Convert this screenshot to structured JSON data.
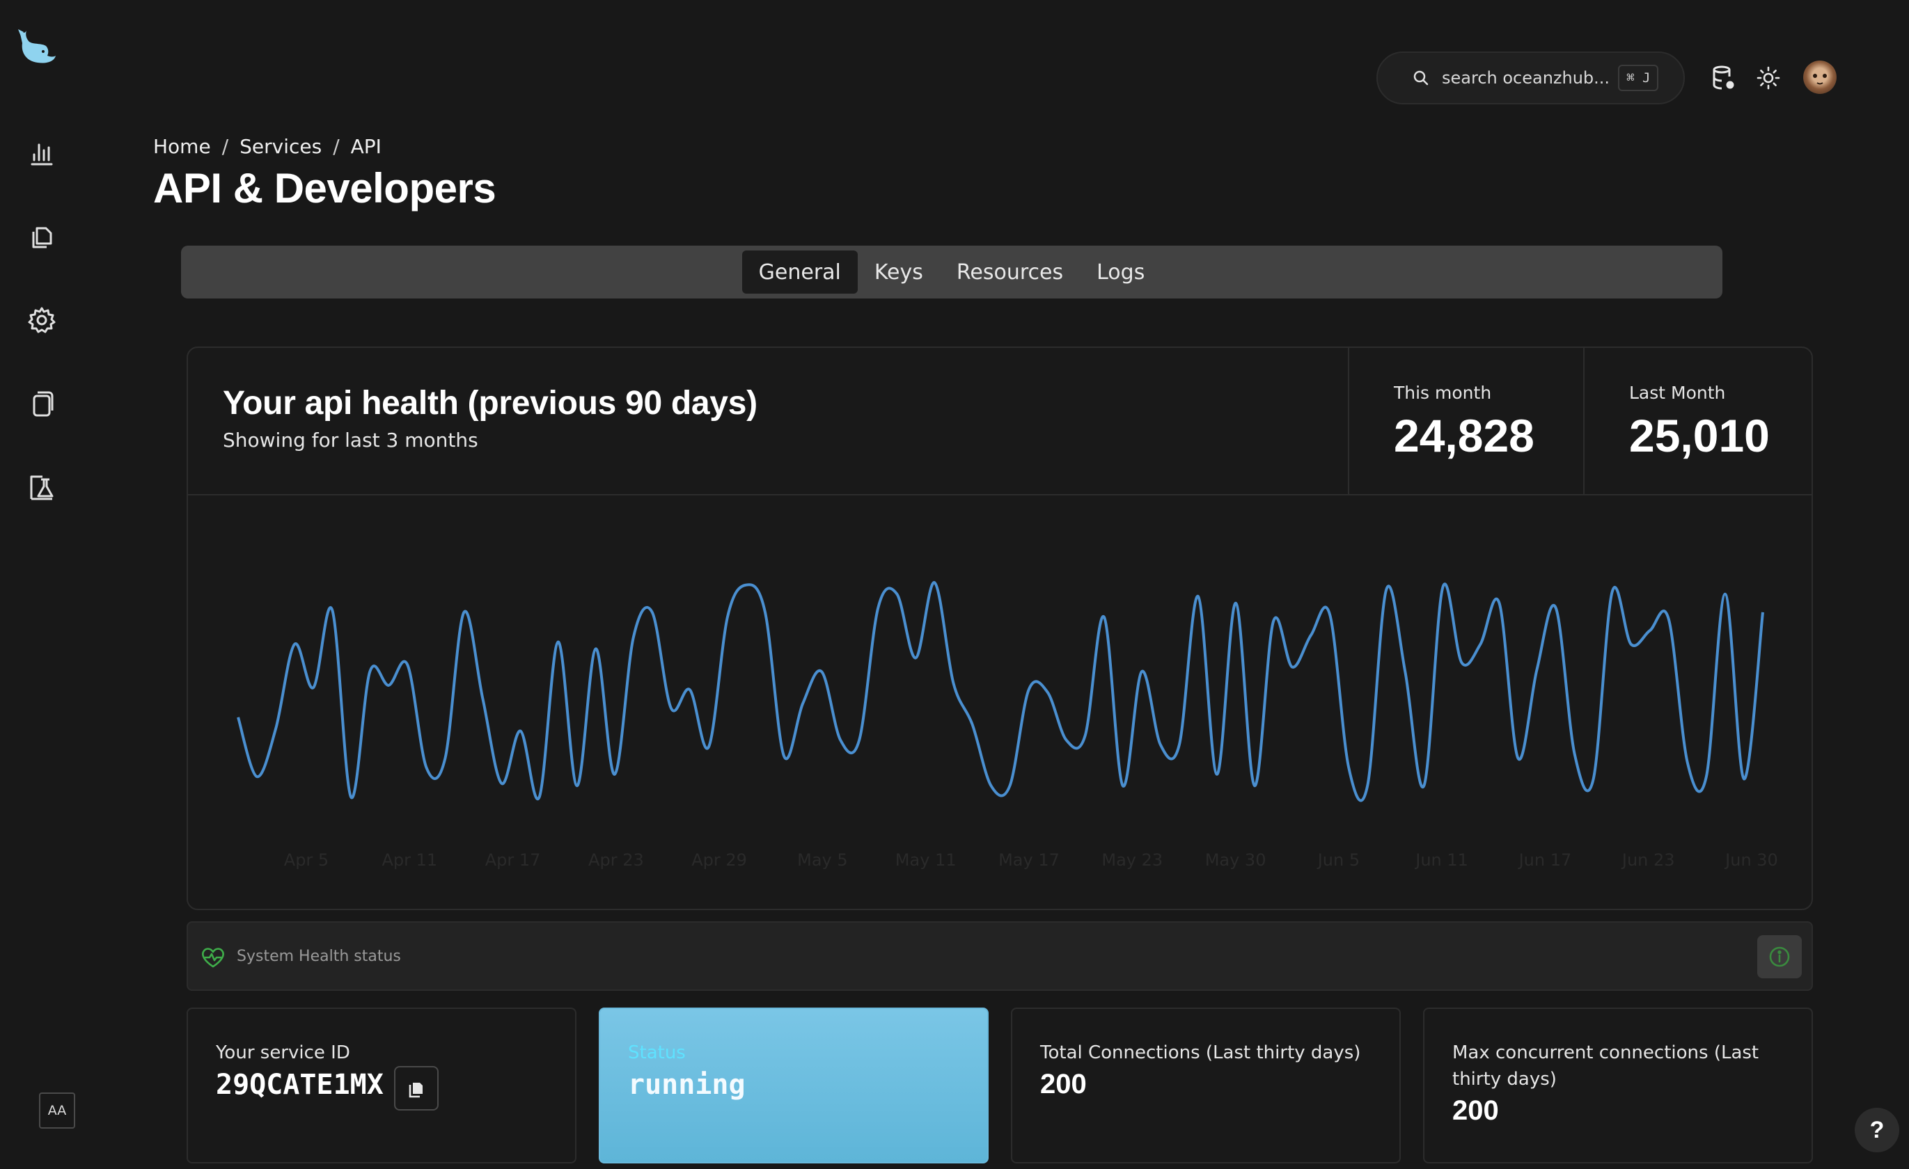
{
  "header": {
    "search_placeholder": "search oceanzhub...",
    "search_shortcut": "⌘ J",
    "icons": [
      "database-settings-icon",
      "sun-icon",
      "avatar"
    ]
  },
  "sidebar": {
    "icons": [
      "whale-logo-icon",
      "bar-chart-icon",
      "documents-icon",
      "gear-icon",
      "copy-icon",
      "lab-flask-icon"
    ],
    "font_toggle": "AA"
  },
  "breadcrumb": [
    "Home",
    "Services",
    "API"
  ],
  "page_title": "API & Developers",
  "tabs": [
    {
      "label": "General",
      "active": true
    },
    {
      "label": "Keys",
      "active": false
    },
    {
      "label": "Resources",
      "active": false
    },
    {
      "label": "Logs",
      "active": false
    }
  ],
  "health_card": {
    "title": "Your api health (previous 90 days)",
    "subtitle": "Showing for last 3 months",
    "this_month_label": "This month",
    "this_month_value": "24,828",
    "last_month_label": "Last Month",
    "last_month_value": "25,010"
  },
  "chart_data": {
    "type": "line",
    "x_ticks": [
      "Apr 5",
      "Apr 11",
      "Apr 17",
      "Apr 23",
      "Apr 29",
      "May 5",
      "May 11",
      "May 17",
      "May 23",
      "May 30",
      "Jun 5",
      "Jun 11",
      "Jun 17",
      "Jun 23",
      "Jun 30"
    ],
    "y": [
      0.4,
      0.14,
      0.35,
      0.72,
      0.53,
      0.87,
      0.05,
      0.6,
      0.54,
      0.63,
      0.18,
      0.22,
      0.86,
      0.48,
      0.11,
      0.34,
      0.05,
      0.73,
      0.1,
      0.7,
      0.15,
      0.75,
      0.86,
      0.44,
      0.52,
      0.27,
      0.84,
      0.98,
      0.86,
      0.23,
      0.46,
      0.6,
      0.3,
      0.3,
      0.88,
      0.94,
      0.66,
      0.99,
      0.55,
      0.37,
      0.1,
      0.1,
      0.52,
      0.51,
      0.3,
      0.32,
      0.84,
      0.1,
      0.6,
      0.28,
      0.28,
      0.93,
      0.15,
      0.9,
      0.1,
      0.82,
      0.62,
      0.76,
      0.85,
      0.18,
      0.1,
      0.96,
      0.6,
      0.1,
      0.97,
      0.64,
      0.72,
      0.9,
      0.22,
      0.61,
      0.88,
      0.24,
      0.13,
      0.95,
      0.72,
      0.78,
      0.83,
      0.2,
      0.14,
      0.94,
      0.13,
      0.86
    ],
    "line_color": "#4a8fd0",
    "grid": false
  },
  "health_status": {
    "label": "System Health status"
  },
  "info_cards": [
    {
      "label": "Your service ID",
      "value": "29QCATE1MX"
    },
    {
      "label": "Status",
      "value": "running"
    },
    {
      "label": "Total Connections (Last thirty days)",
      "value": "200"
    },
    {
      "label": "Max concurrent connections (Last thirty days)",
      "value": "200"
    }
  ],
  "help_button": "?"
}
